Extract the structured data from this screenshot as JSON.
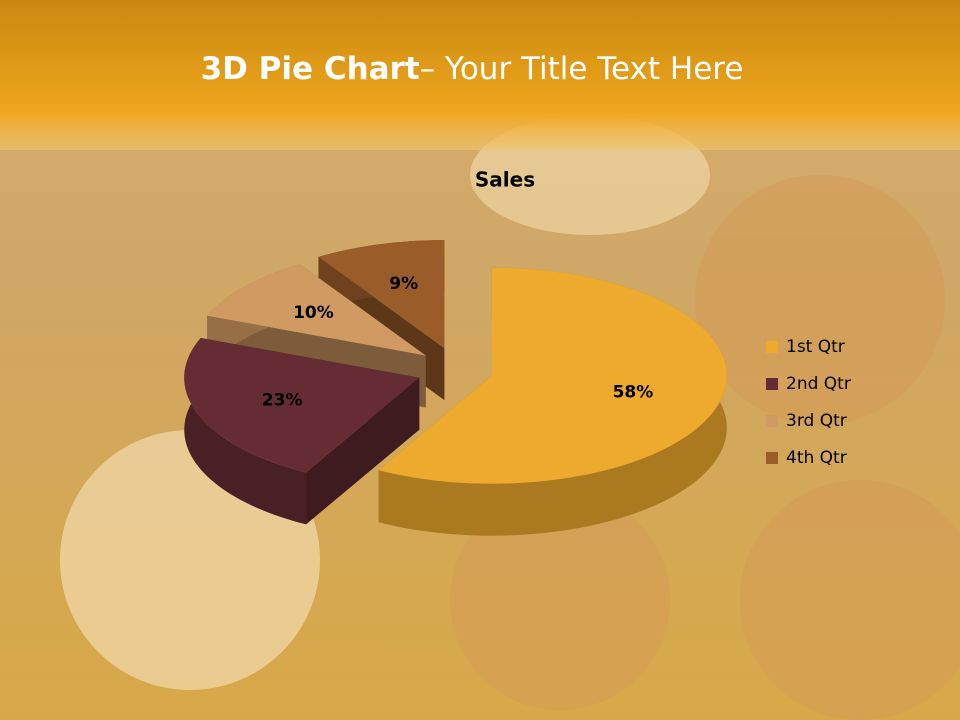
{
  "heading": {
    "bold": "3D Pie Chart",
    "rest": "– Your Title Text Here"
  },
  "chart_data": {
    "type": "pie3d",
    "title": "Sales",
    "categories": [
      "1st Qtr",
      "2nd Qtr",
      "3rd Qtr",
      "4th Qtr"
    ],
    "values": [
      58,
      23,
      10,
      9
    ],
    "value_labels": [
      "58%",
      "23%",
      "10%",
      "9%"
    ],
    "colors": [
      "#eeaa2c",
      "#652d33",
      "#d09a62",
      "#9a5c28"
    ],
    "legend": "right"
  }
}
